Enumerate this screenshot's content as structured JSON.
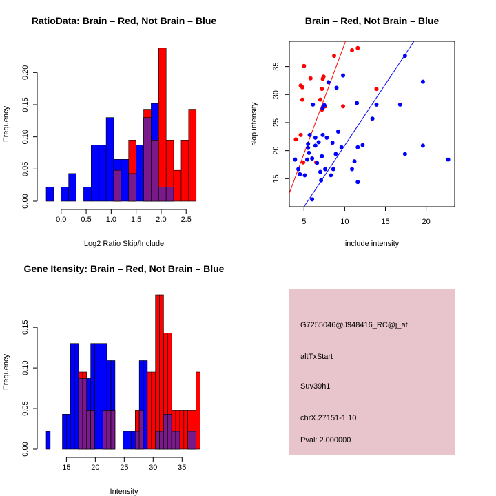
{
  "colors": {
    "brain": "#ff0000",
    "not_brain": "#0000ff",
    "overlap": "#7a1a8a",
    "info_panel": "#e8c4cc",
    "pval_text": "#8b0000"
  },
  "info_panel": {
    "probe_id": "G7255046@J948416_RC@j_at",
    "event_type": "altTxStart",
    "gene": "Suv39h1",
    "location": "chrX.27151-1.10",
    "pval": "Pval: 2.000000"
  },
  "chart_data": [
    {
      "id": "ratio",
      "type": "bar",
      "title": "RatioData: Brain – Red, Not Brain – Blue",
      "xlabel": "Log2 Ratio Skip/Include",
      "ylabel": "Frequency",
      "xlim": [
        -0.3,
        2.8
      ],
      "ylim": [
        0,
        0.24
      ],
      "xticks": [
        0.0,
        0.5,
        1.0,
        1.5,
        2.0,
        2.5
      ],
      "xtick_labels": [
        "0.0",
        "0.5",
        "1.0",
        "1.5",
        "2.0",
        "2.5"
      ],
      "yticks": [
        0.0,
        0.05,
        0.1,
        0.15,
        0.2
      ],
      "ytick_labels": [
        "0.00",
        "0.05",
        "0.10",
        "0.15",
        "0.20"
      ],
      "bin_width": 0.15,
      "bin_starts": [
        -0.3,
        -0.15,
        0.0,
        0.15,
        0.3,
        0.45,
        0.6,
        0.75,
        0.9,
        1.05,
        1.2,
        1.35,
        1.5,
        1.65,
        1.8,
        1.95,
        2.1,
        2.25,
        2.4,
        2.55
      ],
      "series": [
        {
          "name": "Not Brain",
          "color": "#0000ff",
          "values": [
            0.022,
            0,
            0.022,
            0.043,
            0,
            0.022,
            0.087,
            0.087,
            0.13,
            0.065,
            0.065,
            0.043,
            0.087,
            0.13,
            0.152,
            0.022,
            0.022,
            0,
            0,
            0
          ]
        },
        {
          "name": "Brain",
          "color": "#ff0000",
          "values": [
            0,
            0,
            0,
            0,
            0,
            0,
            0,
            0,
            0,
            0.048,
            0,
            0.095,
            0,
            0.143,
            0.095,
            0.238,
            0.095,
            0.048,
            0.095,
            0.143
          ]
        }
      ]
    },
    {
      "id": "scatter",
      "type": "scatter",
      "title": "Brain – Red, Not Brain – Blue",
      "xlabel": "include intensity",
      "ylabel": "skip intensity",
      "xlim": [
        3.2,
        23.5
      ],
      "ylim": [
        10.0,
        39.5
      ],
      "xticks": [
        5,
        10,
        15,
        20
      ],
      "xtick_labels": [
        "5",
        "10",
        "15",
        "20"
      ],
      "yticks": [
        15,
        20,
        25,
        30,
        35
      ],
      "ytick_labels": [
        "15",
        "20",
        "25",
        "30",
        "35"
      ],
      "series": [
        {
          "name": "Brain",
          "color": "#ff0000",
          "points": [
            [
              4.0,
              22.0
            ],
            [
              4.6,
              31.6
            ],
            [
              4.8,
              31.3
            ],
            [
              4.6,
              22.8
            ],
            [
              4.8,
              29.1
            ],
            [
              5.0,
              35.1
            ],
            [
              4.9,
              17.9
            ],
            [
              5.8,
              32.9
            ],
            [
              6.5,
              17.9
            ],
            [
              7.0,
              29.1
            ],
            [
              7.2,
              31.0
            ],
            [
              7.3,
              32.8
            ],
            [
              7.4,
              33.2
            ],
            [
              7.2,
              27.3
            ],
            [
              7.6,
              27.9
            ],
            [
              8.7,
              36.9
            ],
            [
              9.8,
              27.9
            ],
            [
              10.9,
              37.9
            ],
            [
              11.6,
              38.3
            ],
            [
              13.9,
              31.0
            ]
          ],
          "fit": [
            [
              3.2,
              12.4
            ],
            [
              10.1,
              39.5
            ]
          ]
        },
        {
          "name": "Not Brain",
          "color": "#0000ff",
          "points": [
            [
              3.9,
              18.4
            ],
            [
              4.3,
              16.7
            ],
            [
              4.5,
              15.8
            ],
            [
              5.1,
              15.6
            ],
            [
              5.4,
              18.4
            ],
            [
              5.5,
              20.5
            ],
            [
              5.5,
              21.2
            ],
            [
              5.6,
              19.6
            ],
            [
              5.7,
              22.8
            ],
            [
              6.0,
              11.3
            ],
            [
              6.0,
              18.6
            ],
            [
              6.1,
              28.2
            ],
            [
              6.4,
              20.9
            ],
            [
              6.4,
              22.3
            ],
            [
              6.6,
              17.8
            ],
            [
              6.8,
              21.5
            ],
            [
              7.0,
              16.2
            ],
            [
              7.1,
              14.7
            ],
            [
              7.2,
              19.0
            ],
            [
              7.3,
              27.6
            ],
            [
              7.3,
              22.8
            ],
            [
              7.5,
              28.1
            ],
            [
              7.6,
              16.7
            ],
            [
              7.8,
              22.3
            ],
            [
              8.0,
              32.2
            ],
            [
              8.3,
              15.6
            ],
            [
              8.5,
              21.4
            ],
            [
              8.6,
              16.7
            ],
            [
              8.9,
              19.4
            ],
            [
              9.0,
              31.2
            ],
            [
              9.2,
              23.4
            ],
            [
              9.6,
              20.6
            ],
            [
              9.8,
              33.4
            ],
            [
              10.9,
              16.7
            ],
            [
              11.2,
              18.1
            ],
            [
              11.6,
              14.4
            ],
            [
              11.5,
              28.5
            ],
            [
              11.6,
              20.6
            ],
            [
              12.2,
              21.0
            ],
            [
              13.4,
              25.7
            ],
            [
              13.9,
              28.2
            ],
            [
              16.8,
              28.2
            ],
            [
              17.4,
              36.9
            ],
            [
              17.4,
              19.4
            ],
            [
              19.6,
              32.3
            ],
            [
              19.6,
              20.9
            ],
            [
              22.7,
              18.4
            ]
          ],
          "fit": [
            [
              5.0,
              10.0
            ],
            [
              18.5,
              39.5
            ]
          ]
        }
      ]
    },
    {
      "id": "intensity",
      "type": "bar",
      "title": "Gene Itensity: Brain – Red, Not Brain – Blue",
      "xlabel": "Intensity",
      "ylabel": "Frequency",
      "xlim": [
        11.5,
        38.3
      ],
      "ylim": [
        0,
        0.19
      ],
      "xticks": [
        15,
        20,
        25,
        30,
        35
      ],
      "xtick_labels": [
        "15",
        "20",
        "25",
        "30",
        "35"
      ],
      "yticks": [
        0.0,
        0.05,
        0.1,
        0.15
      ],
      "ytick_labels": [
        "0.00",
        "0.05",
        "0.10",
        "0.15"
      ],
      "bin_width": 0.7,
      "bin_starts": [
        11.5,
        12.2,
        12.9,
        13.6,
        14.3,
        15.0,
        15.7,
        16.4,
        17.1,
        17.8,
        18.5,
        19.2,
        19.9,
        20.6,
        21.3,
        22.0,
        22.7,
        23.4,
        24.1,
        24.8,
        25.5,
        26.2,
        26.9,
        27.6,
        28.3,
        29.0,
        29.7,
        30.4,
        31.1,
        31.8,
        32.5,
        33.2,
        33.9,
        34.6,
        35.3,
        36.0,
        36.7,
        37.4
      ],
      "series": [
        {
          "name": "Not Brain",
          "color": "#0000ff",
          "values": [
            0.022,
            0,
            0,
            0,
            0.043,
            0.043,
            0.13,
            0.13,
            0.087,
            0.087,
            0.087,
            0.13,
            0.13,
            0.13,
            0.13,
            0.109,
            0.109,
            0,
            0,
            0.022,
            0.022,
            0.022,
            0.022,
            0.109,
            0.109,
            0,
            0,
            0.022,
            0.022,
            0.043,
            0.043,
            0.022,
            0.022,
            0,
            0,
            0.022,
            0.022,
            0
          ]
        },
        {
          "name": "Brain",
          "color": "#ff0000",
          "values": [
            0,
            0,
            0,
            0,
            0,
            0,
            0,
            0,
            0.095,
            0.095,
            0.048,
            0.048,
            0,
            0,
            0.048,
            0.048,
            0.048,
            0,
            0,
            0,
            0,
            0,
            0.048,
            0.048,
            0,
            0.095,
            0.095,
            0.19,
            0.19,
            0.143,
            0.143,
            0.048,
            0.048,
            0.048,
            0.048,
            0.048,
            0.048,
            0.095
          ]
        }
      ]
    }
  ]
}
